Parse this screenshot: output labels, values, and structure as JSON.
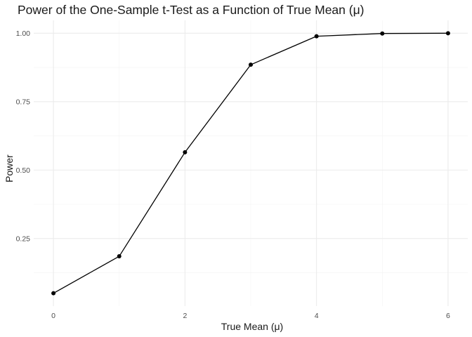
{
  "chart_data": {
    "type": "line",
    "title": "Power of the One-Sample t-Test as a Function of True Mean (μ)",
    "xlabel": "True Mean (μ)",
    "ylabel": "Power",
    "x": [
      0,
      1,
      2,
      3,
      4,
      5,
      6
    ],
    "series": [
      {
        "values": [
          0.05,
          0.185,
          0.565,
          0.885,
          0.989,
          0.999,
          1.0
        ]
      }
    ],
    "xlim": [
      -0.3,
      6.3
    ],
    "ylim": [
      0.003,
      1.047
    ],
    "x_ticks": [
      "0",
      "2",
      "4",
      "6"
    ],
    "x_tick_values": [
      0,
      2,
      4,
      6
    ],
    "x_minor_values": [
      1,
      3,
      5
    ],
    "y_ticks": [
      "0.25",
      "0.50",
      "0.75",
      "1.00"
    ],
    "y_tick_values": [
      0.25,
      0.5,
      0.75,
      1.0
    ],
    "y_minor_values": [
      0.125,
      0.375,
      0.625,
      0.875
    ],
    "grid": true,
    "legend": "none",
    "colors": {
      "line": "#000000",
      "point": "#000000",
      "grid_major": "#ebebeb",
      "grid_minor": "#f2f2f2"
    }
  }
}
